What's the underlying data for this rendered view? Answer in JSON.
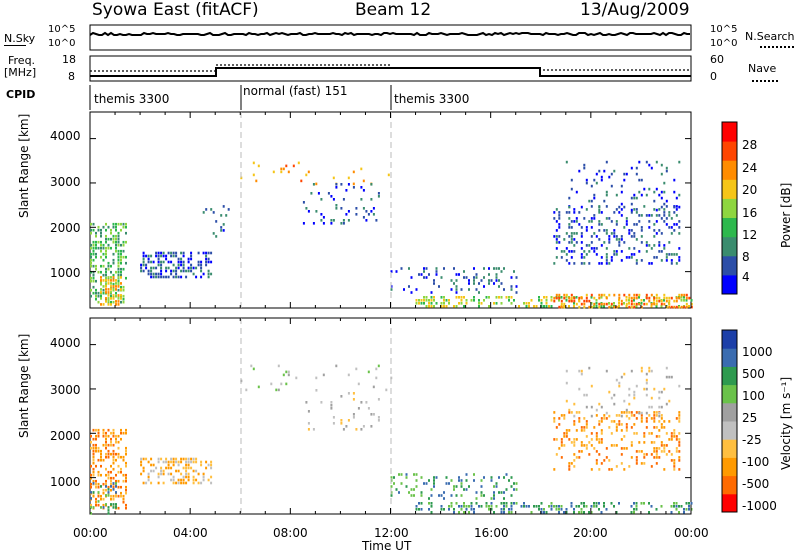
{
  "header": {
    "title": "Syowa East (fitACF)",
    "beam": "Beam 12",
    "date": "13/Aug/2009"
  },
  "top_panels": {
    "nsky_label": "N.Sky",
    "nsearch_label": "N.Search",
    "nsky_ticks": [
      "10^5",
      "10^0"
    ],
    "nsky_right_ticks": [
      "10^5",
      "10^0"
    ],
    "freq_label": "Freq.",
    "freq_unit": "[MHz]",
    "freq_ticks": [
      "18",
      "8"
    ],
    "nave_label": "Nave",
    "nave_ticks": [
      "60",
      "0"
    ],
    "cpid_label": "CPID",
    "modes": [
      {
        "name": "themis 3300",
        "start_h": 0,
        "end_h": 6
      },
      {
        "name": "normal (fast) 151",
        "start_h": 6,
        "end_h": 12
      },
      {
        "name": "themis 3300",
        "start_h": 12,
        "end_h": 24
      }
    ]
  },
  "power_panel": {
    "ylabel": "Slant Range [km]",
    "yticks": [
      "4000",
      "3000",
      "2000",
      "1000"
    ],
    "colorbar_label": "Power [dB]",
    "colorbar_ticks": [
      "28",
      "24",
      "20",
      "16",
      "12",
      "8",
      "4"
    ]
  },
  "velocity_panel": {
    "ylabel": "Slant Range [km]",
    "yticks": [
      "4000",
      "3000",
      "2000",
      "1000"
    ],
    "colorbar_label": "Velocity [m s⁻¹]",
    "colorbar_ticks": [
      "1000",
      "500",
      "100",
      "25",
      "-25",
      "-100",
      "-500",
      "-1000"
    ]
  },
  "x_axis": {
    "label": "Time UT",
    "ticks": [
      "00:00",
      "04:00",
      "08:00",
      "12:00",
      "16:00",
      "20:00",
      "00:00"
    ]
  },
  "chart_data": {
    "type": "heatmap",
    "x_range_hours": [
      0,
      24
    ],
    "y_range_km": [
      180,
      4600
    ],
    "power_colorscale": [
      "#0000ff",
      "#2c4ea8",
      "#3a8c6e",
      "#2db84d",
      "#8ed640",
      "#f5c518",
      "#ff8c00",
      "#ff4500",
      "#ff0000"
    ],
    "velocity_colorscale": [
      "#ff0000",
      "#ff6a00",
      "#ff9a00",
      "#ffbf40",
      "#c0c0c0",
      "#a0a0a0",
      "#6ac24a",
      "#2e9a4f",
      "#3a6cb0",
      "#1c3fa8"
    ],
    "power_blobs": [
      {
        "t0": 0.0,
        "t1": 1.4,
        "r0": 300,
        "r1": 2100,
        "level": 3,
        "density": 0.45
      },
      {
        "t0": 0.4,
        "t1": 1.2,
        "r0": 250,
        "r1": 900,
        "level": 5,
        "density": 0.55
      },
      {
        "t0": 2.0,
        "t1": 4.8,
        "r0": 900,
        "r1": 1450,
        "level": 1,
        "density": 0.5
      },
      {
        "t0": 4.5,
        "t1": 5.5,
        "r0": 1800,
        "r1": 2500,
        "level": 1,
        "density": 0.15
      },
      {
        "t0": 6.0,
        "t1": 12.0,
        "r0": 3000,
        "r1": 3550,
        "level": 6,
        "density": 0.05
      },
      {
        "t0": 8.5,
        "t1": 11.5,
        "r0": 2100,
        "r1": 3000,
        "level": 1,
        "density": 0.12
      },
      {
        "t0": 12.0,
        "t1": 17.0,
        "r0": 500,
        "r1": 1100,
        "level": 1,
        "density": 0.2
      },
      {
        "t0": 13.0,
        "t1": 24.0,
        "r0": 200,
        "r1": 450,
        "level": 4,
        "density": 0.35
      },
      {
        "t0": 18.5,
        "t1": 24.0,
        "r0": 200,
        "r1": 500,
        "level": 6,
        "density": 0.5
      },
      {
        "t0": 18.5,
        "t1": 23.5,
        "r0": 1200,
        "r1": 2500,
        "level": 1,
        "density": 0.25
      },
      {
        "t0": 19.0,
        "t1": 23.5,
        "r0": 2400,
        "r1": 3500,
        "level": 1,
        "density": 0.12
      }
    ],
    "velocity_blobs": [
      {
        "t0": 0.0,
        "t1": 1.4,
        "r0": 300,
        "r1": 2100,
        "level": 2,
        "density": 0.45
      },
      {
        "t0": 0.0,
        "t1": 1.0,
        "r0": 200,
        "r1": 900,
        "level": 7,
        "density": 0.3
      },
      {
        "t0": 2.0,
        "t1": 4.8,
        "r0": 900,
        "r1": 1450,
        "level": 3,
        "density": 0.45
      },
      {
        "t0": 6.0,
        "t1": 12.0,
        "r0": 3000,
        "r1": 3550,
        "level": 5,
        "density": 0.05
      },
      {
        "t0": 8.5,
        "t1": 11.5,
        "r0": 2100,
        "r1": 3000,
        "level": 4,
        "density": 0.1
      },
      {
        "t0": 12.0,
        "t1": 17.0,
        "r0": 500,
        "r1": 1100,
        "level": 7,
        "density": 0.2
      },
      {
        "t0": 13.0,
        "t1": 24.0,
        "r0": 200,
        "r1": 450,
        "level": 7,
        "density": 0.4
      },
      {
        "t0": 18.5,
        "t1": 23.5,
        "r0": 1200,
        "r1": 2500,
        "level": 2,
        "density": 0.25
      },
      {
        "t0": 19.0,
        "t1": 23.5,
        "r0": 2400,
        "r1": 3500,
        "level": 4,
        "density": 0.1
      }
    ]
  }
}
